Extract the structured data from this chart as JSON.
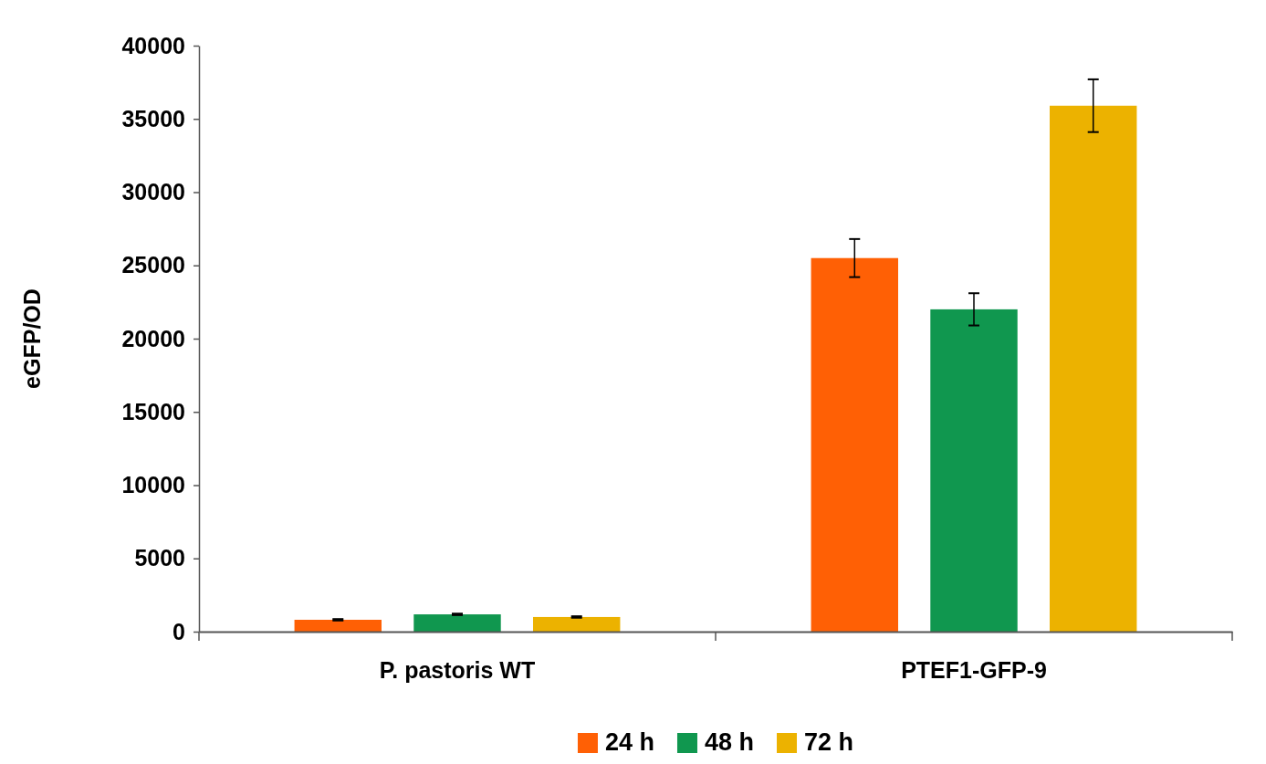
{
  "chart_data": {
    "type": "bar",
    "ylabel": "eGFP/OD",
    "categories": [
      "P. pastoris WT",
      "PTEF1-GFP-9"
    ],
    "series": [
      {
        "name": "24 h",
        "color": "#ff6005",
        "values": [
          810,
          25500
        ],
        "errors": [
          50,
          1300
        ]
      },
      {
        "name": "48 h",
        "color": "#10974f",
        "values": [
          1180,
          22000
        ],
        "errors": [
          50,
          1100
        ]
      },
      {
        "name": "72 h",
        "color": "#ecb200",
        "values": [
          1000,
          35900
        ],
        "errors": [
          50,
          1800
        ]
      }
    ],
    "ylim": [
      0,
      40000
    ],
    "yticks": [
      0,
      5000,
      10000,
      15000,
      20000,
      25000,
      30000,
      35000,
      40000
    ],
    "grid": false,
    "legend": "bottom"
  }
}
